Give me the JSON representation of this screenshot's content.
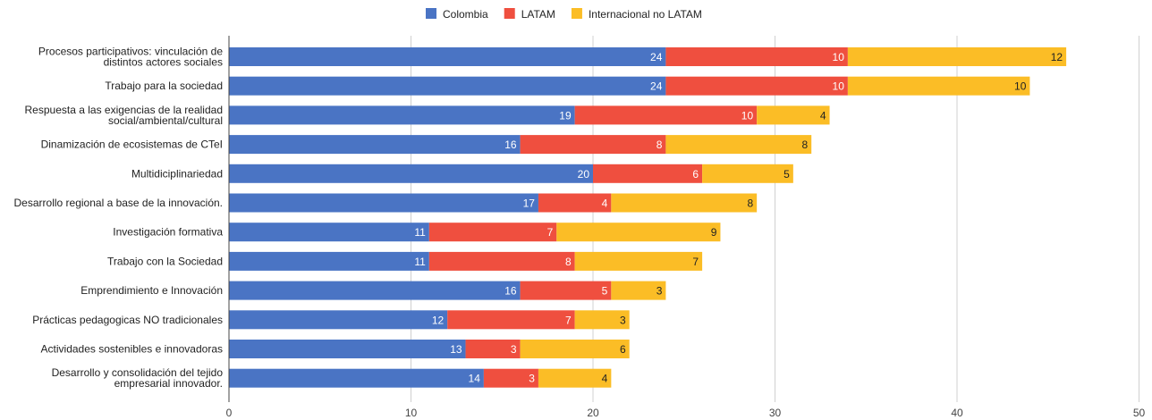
{
  "chart_data": {
    "type": "bar",
    "orientation": "horizontal",
    "stacked": true,
    "categories": [
      "Procesos participativos: vinculación de\ndistintos actores sociales",
      "Trabajo para la sociedad",
      "Respuesta a las exigencias de la realidad\nsocial/ambiental/cultural",
      "Dinamización de ecosistemas de CTeI",
      "Multidiciplinariedad",
      "Desarrollo regional a base de la innovación.",
      "Investigación formativa",
      "Trabajo con la Sociedad",
      "Emprendimiento e Innovación",
      "Prácticas pedagogicas NO tradicionales",
      "Actividades sostenibles e innovadoras",
      "Desarrollo y consolidación del tejido\nempresarial innovador."
    ],
    "series": [
      {
        "name": "Colombia",
        "color": "#4a74c4",
        "label_color": "#ffffff",
        "values": [
          24,
          24,
          19,
          16,
          20,
          17,
          11,
          11,
          16,
          12,
          13,
          14
        ]
      },
      {
        "name": "LATAM",
        "color": "#ef4f3f",
        "label_color": "#ffffff",
        "values": [
          10,
          10,
          10,
          8,
          6,
          4,
          7,
          8,
          5,
          7,
          3,
          3
        ]
      },
      {
        "name": "Internacional no LATAM",
        "color": "#fbbd26",
        "label_color": "#222222",
        "values": [
          12,
          10,
          4,
          8,
          5,
          8,
          9,
          7,
          3,
          3,
          6,
          4
        ]
      }
    ],
    "xlim": [
      0,
      50
    ],
    "xticks": [
      0,
      10,
      20,
      30,
      40,
      50
    ],
    "grid": true,
    "legend_position": "top-center"
  }
}
